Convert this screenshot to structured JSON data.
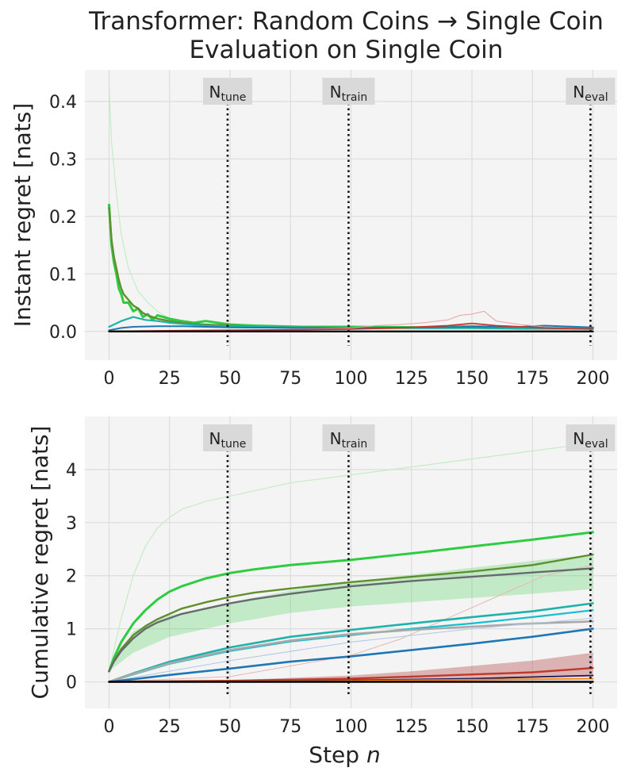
{
  "title_line1": "Transformer: Random Coins → Single Coin",
  "title_line2": "Evaluation on Single Coin",
  "marker_main": "N",
  "markers": [
    {
      "sub": "tune",
      "x": 49
    },
    {
      "sub": "train",
      "x": 99
    },
    {
      "sub": "eval",
      "x": 199
    }
  ],
  "chart_data": [
    {
      "type": "line",
      "ylabel": "Instant regret [nats]",
      "xlabel": "",
      "xlim": [
        -10,
        210
      ],
      "ylim": [
        -0.05,
        0.455
      ],
      "xticks": [
        0,
        25,
        50,
        75,
        100,
        125,
        150,
        175,
        200
      ],
      "yticks": [
        0.0,
        0.1,
        0.2,
        0.3,
        0.4
      ],
      "ytick_labels": [
        "0.0",
        "0.1",
        "0.2",
        "0.3",
        "0.4"
      ],
      "grid": true,
      "series": [
        {
          "color": "#c5ecc4",
          "width": 1.2,
          "x": [
            0,
            1,
            3,
            5,
            8,
            12,
            16,
            20,
            25,
            30,
            40,
            50,
            60,
            80,
            100,
            130,
            150,
            170,
            200
          ],
          "y": [
            0.425,
            0.33,
            0.24,
            0.17,
            0.11,
            0.07,
            0.05,
            0.035,
            0.022,
            0.015,
            0.01,
            0.008,
            0.007,
            0.006,
            0.005,
            0.004,
            0.004,
            0.003,
            0.003
          ]
        },
        {
          "color": "#2ecc40",
          "width": 3,
          "x": [
            0,
            1,
            2,
            3,
            4,
            5,
            6,
            8,
            10,
            12,
            14,
            16,
            18,
            20,
            25,
            30,
            35,
            40,
            50,
            60,
            80,
            100,
            130,
            150,
            170,
            200
          ],
          "y": [
            0.22,
            0.15,
            0.12,
            0.1,
            0.075,
            0.065,
            0.05,
            0.05,
            0.035,
            0.04,
            0.025,
            0.03,
            0.02,
            0.028,
            0.022,
            0.018,
            0.015,
            0.018,
            0.012,
            0.01,
            0.008,
            0.008,
            0.007,
            0.009,
            0.006,
            0.006
          ]
        },
        {
          "color": "#5f8f2e",
          "width": 2.4,
          "x": [
            0,
            1,
            2,
            3,
            4,
            5,
            6,
            8,
            10,
            12,
            14,
            16,
            18,
            20,
            25,
            30,
            35,
            40,
            50,
            60,
            80,
            100,
            130,
            150,
            170,
            200
          ],
          "y": [
            0.215,
            0.16,
            0.13,
            0.11,
            0.09,
            0.075,
            0.065,
            0.055,
            0.045,
            0.04,
            0.032,
            0.028,
            0.025,
            0.022,
            0.018,
            0.015,
            0.013,
            0.012,
            0.01,
            0.008,
            0.007,
            0.006,
            0.006,
            0.006,
            0.005,
            0.005
          ]
        },
        {
          "color": "#20b2aa",
          "width": 2.2,
          "x": [
            0,
            5,
            10,
            15,
            20,
            25,
            30,
            40,
            50,
            60,
            80,
            100,
            130,
            150,
            170,
            200
          ],
          "y": [
            0.008,
            0.018,
            0.025,
            0.02,
            0.018,
            0.015,
            0.013,
            0.01,
            0.009,
            0.008,
            0.007,
            0.006,
            0.006,
            0.006,
            0.005,
            0.005
          ]
        },
        {
          "color": "#1f77b4",
          "width": 2,
          "x": [
            0,
            5,
            10,
            20,
            30,
            50,
            80,
            100,
            130,
            150,
            170,
            180,
            200
          ],
          "y": [
            0.002,
            0.006,
            0.008,
            0.009,
            0.009,
            0.007,
            0.006,
            0.006,
            0.007,
            0.008,
            0.008,
            0.01,
            0.007
          ]
        },
        {
          "color": "#e6a3a3",
          "width": 1,
          "x": [
            0,
            20,
            50,
            80,
            100,
            110,
            120,
            130,
            140,
            145,
            150,
            155,
            160,
            170,
            180,
            200
          ],
          "y": [
            0.001,
            0.001,
            0.002,
            0.004,
            0.006,
            0.01,
            0.012,
            0.015,
            0.02,
            0.028,
            0.03,
            0.035,
            0.018,
            0.012,
            0.008,
            0.004
          ]
        },
        {
          "color": "#c0392b",
          "width": 1.8,
          "x": [
            0,
            20,
            50,
            80,
            100,
            120,
            140,
            150,
            160,
            180,
            200
          ],
          "y": [
            0.0,
            0.001,
            0.002,
            0.003,
            0.004,
            0.006,
            0.01,
            0.014,
            0.01,
            0.006,
            0.004
          ]
        },
        {
          "color": "#000000",
          "width": 2.4,
          "x": [
            0,
            200
          ],
          "y": [
            0.0,
            0.0
          ]
        }
      ]
    },
    {
      "type": "line",
      "ylabel": "Cumulative regret [nats]",
      "xlabel_main": "Step ",
      "xlabel_var": "n",
      "xlim": [
        -10,
        210
      ],
      "ylim": [
        -0.5,
        5.0
      ],
      "xticks": [
        0,
        25,
        50,
        75,
        100,
        125,
        150,
        175,
        200
      ],
      "yticks": [
        0,
        1,
        2,
        3,
        4
      ],
      "ytick_labels": [
        "0",
        "1",
        "2",
        "3",
        "4"
      ],
      "grid": true,
      "band": {
        "color": "#2ecc40",
        "opacity": 0.25,
        "x": [
          0,
          10,
          25,
          50,
          75,
          100,
          125,
          150,
          175,
          200
        ],
        "lower": [
          0.2,
          0.55,
          0.85,
          1.1,
          1.3,
          1.42,
          1.5,
          1.58,
          1.66,
          1.75
        ],
        "upper": [
          0.22,
          0.95,
          1.25,
          1.5,
          1.72,
          1.88,
          2.02,
          2.15,
          2.28,
          2.4
        ]
      },
      "band2": {
        "color": "#b03a3a",
        "opacity": 0.35,
        "x": [
          0,
          50,
          100,
          125,
          150,
          175,
          200
        ],
        "lower": [
          0.0,
          0.0,
          0.02,
          0.04,
          0.06,
          0.08,
          0.1
        ],
        "upper": [
          0.0,
          0.03,
          0.12,
          0.2,
          0.3,
          0.4,
          0.55
        ]
      },
      "series": [
        {
          "color": "#c5ecc4",
          "width": 1.2,
          "x": [
            0,
            5,
            10,
            15,
            20,
            25,
            30,
            40,
            50,
            75,
            100,
            125,
            150,
            175,
            200
          ],
          "y": [
            0.2,
            1.2,
            2.0,
            2.55,
            2.9,
            3.1,
            3.25,
            3.4,
            3.5,
            3.75,
            3.9,
            4.05,
            4.2,
            4.35,
            4.5
          ]
        },
        {
          "color": "#e8b5b5",
          "width": 1,
          "x": [
            0,
            50,
            100,
            120,
            140,
            160,
            180,
            200
          ],
          "y": [
            0.0,
            0.1,
            0.5,
            0.8,
            1.2,
            1.6,
            2.0,
            2.2
          ]
        },
        {
          "color": "#2ecc40",
          "width": 3,
          "x": [
            0,
            2,
            5,
            10,
            15,
            20,
            25,
            30,
            40,
            50,
            60,
            75,
            100,
            125,
            150,
            175,
            200
          ],
          "y": [
            0.2,
            0.45,
            0.75,
            1.1,
            1.35,
            1.55,
            1.7,
            1.8,
            1.95,
            2.05,
            2.12,
            2.2,
            2.3,
            2.42,
            2.55,
            2.68,
            2.82
          ]
        },
        {
          "color": "#5f8f2e",
          "width": 2.4,
          "x": [
            0,
            2,
            5,
            10,
            15,
            20,
            25,
            30,
            40,
            50,
            60,
            75,
            100,
            125,
            150,
            175,
            200
          ],
          "y": [
            0.2,
            0.4,
            0.62,
            0.88,
            1.05,
            1.18,
            1.28,
            1.38,
            1.5,
            1.6,
            1.68,
            1.76,
            1.88,
            1.98,
            2.08,
            2.2,
            2.4
          ]
        },
        {
          "color": "#666a6e",
          "width": 2.4,
          "x": [
            0,
            2,
            5,
            10,
            15,
            20,
            25,
            30,
            40,
            50,
            60,
            75,
            100,
            125,
            150,
            175,
            200
          ],
          "y": [
            0.2,
            0.38,
            0.58,
            0.82,
            1.0,
            1.12,
            1.2,
            1.28,
            1.38,
            1.48,
            1.56,
            1.66,
            1.8,
            1.9,
            1.98,
            2.06,
            2.14
          ]
        },
        {
          "color": "#20b2aa",
          "width": 2.6,
          "x": [
            0,
            10,
            25,
            50,
            75,
            100,
            125,
            150,
            175,
            200
          ],
          "y": [
            0.0,
            0.16,
            0.38,
            0.65,
            0.85,
            0.98,
            1.1,
            1.22,
            1.33,
            1.48
          ]
        },
        {
          "color": "#17becf",
          "width": 2.2,
          "x": [
            0,
            10,
            25,
            50,
            75,
            100,
            125,
            150,
            175,
            200
          ],
          "y": [
            0.0,
            0.14,
            0.34,
            0.58,
            0.76,
            0.88,
            1.0,
            1.1,
            1.22,
            1.35
          ]
        },
        {
          "color": "#a9a9a9",
          "width": 2.6,
          "x": [
            0,
            10,
            25,
            50,
            75,
            100,
            125,
            150,
            175,
            200
          ],
          "y": [
            0.0,
            0.15,
            0.35,
            0.6,
            0.78,
            0.9,
            0.98,
            1.04,
            1.1,
            1.14
          ]
        },
        {
          "color": "#aec7e8",
          "width": 1,
          "x": [
            0,
            50,
            100,
            150,
            200
          ],
          "y": [
            0.0,
            0.4,
            0.75,
            1.0,
            1.2
          ]
        },
        {
          "color": "#1f77b4",
          "width": 2.6,
          "x": [
            0,
            10,
            25,
            50,
            75,
            100,
            125,
            150,
            175,
            200
          ],
          "y": [
            0.0,
            0.05,
            0.13,
            0.25,
            0.38,
            0.48,
            0.6,
            0.72,
            0.85,
            1.0
          ]
        },
        {
          "color": "#c0392b",
          "width": 2.4,
          "x": [
            0,
            50,
            100,
            125,
            150,
            175,
            200
          ],
          "y": [
            0.0,
            0.02,
            0.06,
            0.1,
            0.14,
            0.18,
            0.26
          ]
        },
        {
          "color": "#1a1a5e",
          "width": 1.8,
          "x": [
            0,
            50,
            100,
            150,
            200
          ],
          "y": [
            0.0,
            0.01,
            0.03,
            0.06,
            0.12
          ]
        },
        {
          "color": "#ff7f0e",
          "width": 2,
          "x": [
            0,
            50,
            100,
            150,
            200
          ],
          "y": [
            0.0,
            0.01,
            0.02,
            0.04,
            0.06
          ]
        },
        {
          "color": "#000000",
          "width": 2.4,
          "x": [
            0,
            200
          ],
          "y": [
            0.0,
            0.0
          ]
        }
      ]
    }
  ]
}
